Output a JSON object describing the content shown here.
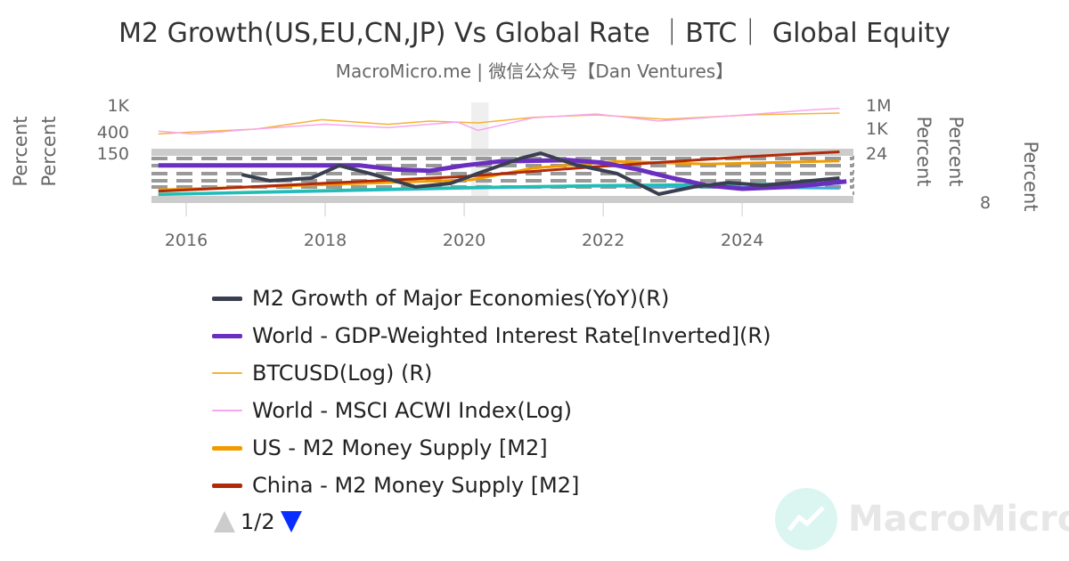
{
  "title": "M2 Growth(US,EU,CN,JP) Vs Global Rate ｜BTC｜ Global Equity",
  "subtitle": "MacroMicro.me | 微信公众号【Dan Ventures】",
  "watermark": "MacroMicro",
  "chart_data": {
    "type": "line",
    "x_ticks": [
      "2016",
      "2018",
      "2020",
      "2022",
      "2024"
    ],
    "xlim": [
      2015.5,
      2025.6
    ],
    "shaded_period": [
      2020.1,
      2020.35
    ],
    "axes": {
      "msci": {
        "label": "Percent",
        "scale": "log",
        "ticks": [
          "1K",
          "400",
          "150"
        ],
        "tick_values": [
          1000,
          400,
          150
        ],
        "side": "left"
      },
      "left2": {
        "label": "Percent",
        "side": "left"
      },
      "btc": {
        "label": "Percent",
        "scale": "log",
        "ticks": [
          "1M",
          "1K",
          "24"
        ],
        "tick_values": [
          1000000,
          1000,
          24
        ],
        "side": "right"
      },
      "m2_yoy": {
        "label": "Percent",
        "range": [
          -4,
          16
        ],
        "side": "right"
      },
      "rate_inverted": {
        "label": "Percent",
        "range": [
          -1,
          7
        ],
        "inverted": true,
        "ticks": [
          "8"
        ],
        "side": "right"
      },
      "us_m2": {
        "range": [
          8,
          26
        ]
      },
      "cn_m2": {
        "range": [
          80,
          340
        ]
      }
    },
    "series": [
      {
        "name": "M2 Growth of Major Economies(YoY)(R)",
        "color": "#3a3f4f",
        "width": 4,
        "axis": "m2_yoy",
        "x": [
          2016.8,
          2017.2,
          2017.8,
          2018.2,
          2018.7,
          2019.3,
          2019.8,
          2020.3,
          2020.8,
          2021.1,
          2021.6,
          2022.2,
          2022.8,
          2023.3,
          2023.8,
          2024.3,
          2025.4
        ],
        "y": [
          6.3,
          4,
          5,
          9.7,
          6.3,
          1.7,
          3,
          7.7,
          12.3,
          14.3,
          10,
          6.7,
          -1,
          1.7,
          3.3,
          2.3,
          5
        ]
      },
      {
        "name": "World - GDP-Weighted Interest Rate[Inverted](R)",
        "color": "#6a2fc0",
        "width": 5,
        "axis": "rate_inverted",
        "x": [
          2015.6,
          2018.5,
          2019,
          2019.5,
          2020,
          2020.5,
          2021.5,
          2022,
          2022.5,
          2023,
          2023.5,
          2024,
          2024.7,
          2025.5
        ],
        "y": [
          1.5,
          1.5,
          2.1,
          2.3,
          1.5,
          0.9,
          0.7,
          1.1,
          2.1,
          3.4,
          4.5,
          5,
          4.7,
          3.9
        ]
      },
      {
        "name": "BTCUSD(Log) (R)",
        "color": "#f5b335",
        "width": 1.5,
        "axis": "btc",
        "x": [
          2015.6,
          2016,
          2017,
          2017.95,
          2018.9,
          2019.5,
          2020.2,
          2021,
          2021.9,
          2022.9,
          2024.2,
          2025.4
        ],
        "y": [
          250,
          400,
          1000,
          15000,
          4000,
          10000,
          6000,
          30000,
          60000,
          17000,
          65000,
          100000
        ]
      },
      {
        "name": "World - MSCI ACWI Index(Log)",
        "color": "#f7a6ef",
        "width": 1.5,
        "axis": "msci",
        "x": [
          2015.6,
          2016.1,
          2017,
          2018,
          2018.9,
          2019.9,
          2020.2,
          2021,
          2021.9,
          2022.8,
          2023.9,
          2025,
          2025.4
        ],
        "y": [
          410,
          370,
          440,
          520,
          460,
          560,
          420,
          650,
          740,
          580,
          700,
          850,
          900
        ]
      },
      {
        "name": "US - M2 Money Supply [M2]",
        "color": "#f29b00",
        "width": 3,
        "axis": "us_m2",
        "x": [
          2015.6,
          2020.1,
          2021,
          2022.2,
          2023.5,
          2025.4
        ],
        "y": [
          12.1,
          15.5,
          19.5,
          21.7,
          20.8,
          21.9
        ]
      },
      {
        "name": "China - M2 Money Supply [M2]",
        "color": "#b02a08",
        "width": 3,
        "axis": "cn_m2",
        "x": [
          2015.6,
          2018,
          2020,
          2022,
          2024,
          2025.4
        ],
        "y": [
          133,
          172,
          205,
          255,
          300,
          325
        ]
      },
      {
        "color": "#1fbfb0",
        "width": 3,
        "axis": "m2_yoy",
        "x": [
          2015.6,
          2020,
          2022,
          2025.4
        ],
        "y": [
          -1,
          1.5,
          2.3,
          3
        ]
      },
      {
        "color": "#3aafdc",
        "width": 3,
        "axis": "m2_yoy",
        "x": [
          2015.6,
          2020,
          2022,
          2025.4
        ],
        "y": [
          -1.2,
          1.2,
          2,
          1.2
        ]
      }
    ],
    "legend_placement": "bottom",
    "legend_page": "1/2"
  }
}
